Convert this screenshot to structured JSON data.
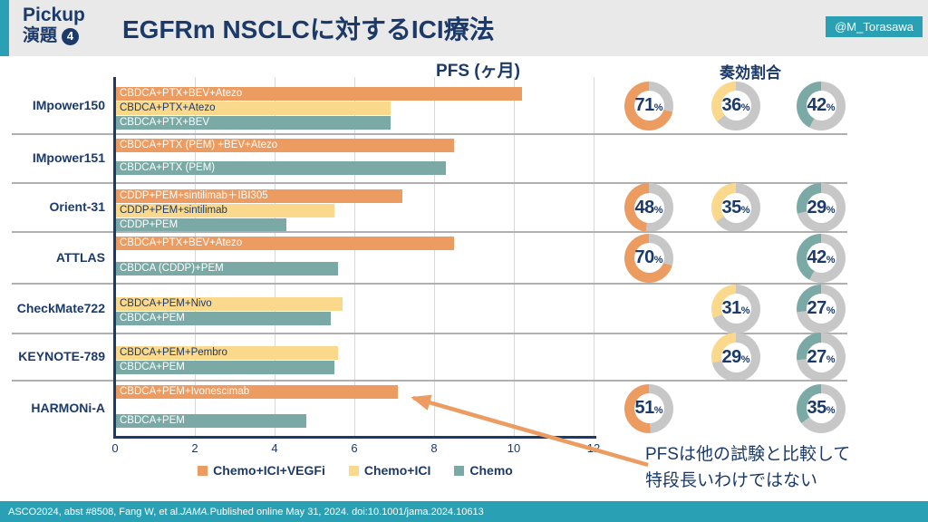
{
  "header": {
    "badge_line1": "Pickup",
    "badge_line2": "演題",
    "badge_number": "4",
    "title": "EGFRm NSCLCに対するICI療法",
    "handle": "@M_Torasawa"
  },
  "chart_headers": {
    "pfs": "PFS (ヶ月)",
    "orr": "奏効割合"
  },
  "chart_data": {
    "type": "bar",
    "orientation": "horizontal",
    "x_axis": {
      "label": "PFS (ヶ月)",
      "min": 0,
      "max": 12,
      "ticks": [
        0,
        2,
        4,
        6,
        8,
        10,
        12
      ]
    },
    "legend": [
      "Chemo+ICI+VEGFi",
      "Chemo+ICI",
      "Chemo"
    ],
    "series_colors": {
      "Chemo+ICI+VEGFi": "#EC9B61",
      "Chemo+ICI": "#FAD98D",
      "Chemo": "#7BA9A5"
    },
    "groups": [
      {
        "trial": "IMpower150",
        "arrangement": "tight",
        "bars": [
          {
            "series": "Chemo+ICI+VEGFi",
            "label": "CBDCA+PTX+BEV+Atezo",
            "pfs_months": 10.2
          },
          {
            "series": "Chemo+ICI",
            "label": "CBDCA+PTX+Atezo",
            "pfs_months": 6.9
          },
          {
            "series": "Chemo",
            "label": "CBDCA+PTX+BEV",
            "pfs_months": 6.9
          }
        ],
        "response_rates": [
          {
            "series": "Chemo+ICI+VEGFi",
            "pct": 71
          },
          {
            "series": "Chemo+ICI",
            "pct": 36
          },
          {
            "series": "Chemo",
            "pct": 42
          }
        ]
      },
      {
        "trial": "IMpower151",
        "arrangement": "spread",
        "bars": [
          {
            "series": "Chemo+ICI+VEGFi",
            "label": "CBDCA+PTX (PEM) +BEV+Atezo",
            "pfs_months": 8.5
          },
          {
            "series": "Chemo",
            "label": "CBDCA+PTX (PEM)",
            "pfs_months": 8.3
          }
        ],
        "response_rates": []
      },
      {
        "trial": "Orient-31",
        "arrangement": "tight",
        "bars": [
          {
            "series": "Chemo+ICI+VEGFi",
            "label": "CDDP+PEM+sintilimab＋IBI305",
            "pfs_months": 7.2
          },
          {
            "series": "Chemo+ICI",
            "label": "CDDP+PEM+sintilimab",
            "pfs_months": 5.5
          },
          {
            "series": "Chemo",
            "label": "CDDP+PEM",
            "pfs_months": 4.3
          }
        ],
        "response_rates": [
          {
            "series": "Chemo+ICI+VEGFi",
            "pct": 48
          },
          {
            "series": "Chemo+ICI",
            "pct": 35
          },
          {
            "series": "Chemo",
            "pct": 29
          }
        ]
      },
      {
        "trial": "ATTLAS",
        "arrangement": "spread",
        "bars": [
          {
            "series": "Chemo+ICI+VEGFi",
            "label": "CBDCA+PTX+BEV+Atezo",
            "pfs_months": 8.5
          },
          {
            "series": "Chemo",
            "label": "CBDCA (CDDP)+PEM",
            "pfs_months": 5.6
          }
        ],
        "response_rates": [
          {
            "series": "Chemo+ICI+VEGFi",
            "pct": 70
          },
          {
            "series": "Chemo",
            "pct": 42
          }
        ]
      },
      {
        "trial": "CheckMate722",
        "arrangement": "adjacent",
        "bars": [
          {
            "series": "Chemo+ICI",
            "label": "CBDCA+PEM+Nivo",
            "pfs_months": 5.7
          },
          {
            "series": "Chemo",
            "label": "CBDCA+PEM",
            "pfs_months": 5.4
          }
        ],
        "response_rates": [
          {
            "series": "Chemo+ICI",
            "pct": 31
          },
          {
            "series": "Chemo",
            "pct": 27
          }
        ]
      },
      {
        "trial": "KEYNOTE-789",
        "arrangement": "adjacent",
        "bars": [
          {
            "series": "Chemo+ICI",
            "label": "CBDCA+PEM+Pembro",
            "pfs_months": 5.6
          },
          {
            "series": "Chemo",
            "label": "CBDCA+PEM",
            "pfs_months": 5.5
          }
        ],
        "response_rates": [
          {
            "series": "Chemo+ICI",
            "pct": 29
          },
          {
            "series": "Chemo",
            "pct": 27
          }
        ]
      },
      {
        "trial": "HARMONi-A",
        "arrangement": "spread",
        "bars": [
          {
            "series": "Chemo+ICI+VEGFi",
            "label": "CBDCA+PEM+Ivonescimab",
            "pfs_months": 7.1
          },
          {
            "series": "Chemo",
            "label": "CBDCA+PEM",
            "pfs_months": 4.8
          }
        ],
        "response_rates": [
          {
            "series": "Chemo+ICI+VEGFi",
            "pct": 51
          },
          {
            "series": "Chemo",
            "pct": 35
          }
        ]
      }
    ]
  },
  "annotation": {
    "line1": "PFSは他の試験と比較して",
    "line2": "特段長いわけではない"
  },
  "footer": {
    "pre": "ASCO2024, abst #8508, Fang W, et al. ",
    "journal": "JAMA.",
    "post": " Published online May 31, 2024. doi:10.1001/jama.2024.10613"
  },
  "colors": {
    "navy": "#1C3A69",
    "accent_teal": "#2AA0B5",
    "header_bg": "#E9E9E9",
    "ring_gray": "#C7C7C7",
    "gridline": "#D8D8D8",
    "divider": "#B0B0B0",
    "orange": "#EC9B61",
    "yellow": "#FAD98D",
    "teal": "#7BA9A5"
  }
}
